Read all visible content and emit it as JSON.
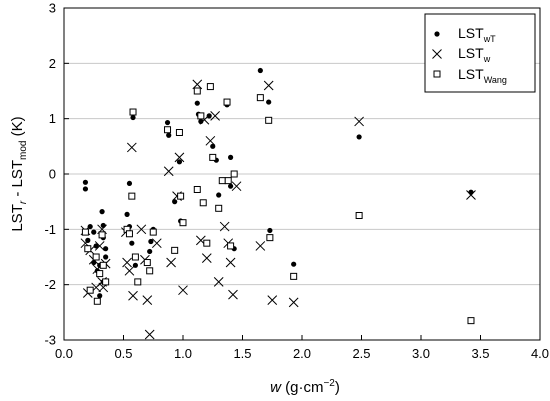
{
  "chart_data": {
    "type": "scatter",
    "xlabel": {
      "main": "w",
      "unit": "(g·cm",
      "exp": "−2",
      "close": ")"
    },
    "ylabel": {
      "a": "LST",
      "a_sub": "r",
      "b": " - LST",
      "b_sub": "mod",
      "c": " (K)"
    },
    "xlim": [
      0,
      4
    ],
    "ylim": [
      -3,
      3
    ],
    "xticks": [
      0.0,
      0.5,
      1.0,
      1.5,
      2.0,
      2.5,
      3.0,
      3.5,
      4.0
    ],
    "xtick_labels": [
      "0.0",
      "0.5",
      "1.0",
      "1.5",
      "2.0",
      "2.5",
      "3.0",
      "3.5",
      "4.0"
    ],
    "yticks": [
      -3,
      -2,
      -1,
      0,
      1,
      2,
      3
    ],
    "ytick_labels": [
      "-3",
      "-2",
      "-1",
      "0",
      "1",
      "2",
      "3"
    ],
    "grid": "horizontal",
    "legend_position": "top-right",
    "series": [
      {
        "name": "LST",
        "name_sub": "wT",
        "marker": "dot",
        "color": "#000000",
        "points": [
          [
            0.18,
            -0.15
          ],
          [
            0.18,
            -0.27
          ],
          [
            0.22,
            -0.95
          ],
          [
            0.2,
            -1.2
          ],
          [
            0.25,
            -1.05
          ],
          [
            0.27,
            -1.3
          ],
          [
            0.25,
            -1.6
          ],
          [
            0.28,
            -1.75
          ],
          [
            0.3,
            -1.65
          ],
          [
            0.32,
            -0.68
          ],
          [
            0.33,
            -0.93
          ],
          [
            0.33,
            -1.15
          ],
          [
            0.35,
            -1.35
          ],
          [
            0.35,
            -1.5
          ],
          [
            0.33,
            -1.95
          ],
          [
            0.3,
            -2.2
          ],
          [
            0.53,
            -0.73
          ],
          [
            0.55,
            -0.17
          ],
          [
            0.55,
            -0.95
          ],
          [
            0.57,
            -1.25
          ],
          [
            0.58,
            1.02
          ],
          [
            0.6,
            -1.65
          ],
          [
            0.72,
            -1.4
          ],
          [
            0.73,
            -1.22
          ],
          [
            0.75,
            -1.0
          ],
          [
            0.87,
            0.93
          ],
          [
            0.88,
            0.7
          ],
          [
            0.93,
            -0.5
          ],
          [
            0.97,
            0.22
          ],
          [
            0.98,
            -0.85
          ],
          [
            1.13,
            1.08
          ],
          [
            1.12,
            1.28
          ],
          [
            1.15,
            0.95
          ],
          [
            1.22,
            1.05
          ],
          [
            1.25,
            0.5
          ],
          [
            1.28,
            0.25
          ],
          [
            1.3,
            -0.38
          ],
          [
            1.37,
            1.25
          ],
          [
            1.4,
            0.3
          ],
          [
            1.4,
            -0.22
          ],
          [
            1.43,
            -1.35
          ],
          [
            1.65,
            1.87
          ],
          [
            1.72,
            1.3
          ],
          [
            1.73,
            -1.02
          ],
          [
            1.93,
            -1.63
          ],
          [
            2.48,
            0.67
          ],
          [
            3.42,
            -0.33
          ]
        ]
      },
      {
        "name": "LST",
        "name_sub": "w",
        "marker": "cross",
        "color": "#000000",
        "points": [
          [
            0.18,
            -1.02
          ],
          [
            0.18,
            -1.25
          ],
          [
            0.2,
            -2.15
          ],
          [
            0.22,
            -1.38
          ],
          [
            0.25,
            -1.55
          ],
          [
            0.27,
            -2.05
          ],
          [
            0.28,
            -1.72
          ],
          [
            0.3,
            -1.3
          ],
          [
            0.32,
            -1.0
          ],
          [
            0.32,
            -1.95
          ],
          [
            0.33,
            -2.05
          ],
          [
            0.35,
            -1.62
          ],
          [
            0.52,
            -1.05
          ],
          [
            0.53,
            -1.6
          ],
          [
            0.55,
            -1.75
          ],
          [
            0.57,
            0.48
          ],
          [
            0.58,
            -2.2
          ],
          [
            0.65,
            -1.0
          ],
          [
            0.68,
            -1.55
          ],
          [
            0.7,
            -2.28
          ],
          [
            0.72,
            -2.9
          ],
          [
            0.78,
            -1.25
          ],
          [
            0.88,
            0.05
          ],
          [
            0.9,
            -1.6
          ],
          [
            0.95,
            -0.4
          ],
          [
            0.97,
            0.3
          ],
          [
            1.0,
            -2.1
          ],
          [
            1.12,
            1.62
          ],
          [
            1.15,
            -1.2
          ],
          [
            1.18,
            0.98
          ],
          [
            1.2,
            -1.52
          ],
          [
            1.23,
            0.6
          ],
          [
            1.27,
            1.05
          ],
          [
            1.3,
            -1.95
          ],
          [
            1.35,
            -0.95
          ],
          [
            1.38,
            -1.25
          ],
          [
            1.4,
            -1.6
          ],
          [
            1.42,
            -2.18
          ],
          [
            1.45,
            -0.22
          ],
          [
            1.65,
            -1.3
          ],
          [
            1.72,
            1.6
          ],
          [
            1.75,
            -2.28
          ],
          [
            1.93,
            -2.32
          ],
          [
            2.48,
            0.95
          ],
          [
            3.42,
            -0.38
          ]
        ]
      },
      {
        "name": "LST",
        "name_sub": "Wang",
        "marker": "square",
        "color": "#000000",
        "points": [
          [
            0.18,
            -1.05
          ],
          [
            0.2,
            -1.35
          ],
          [
            0.22,
            -2.1
          ],
          [
            0.27,
            -1.5
          ],
          [
            0.28,
            -2.3
          ],
          [
            0.3,
            -1.8
          ],
          [
            0.32,
            -1.1
          ],
          [
            0.33,
            -1.65
          ],
          [
            0.35,
            -1.95
          ],
          [
            0.53,
            -1.0
          ],
          [
            0.55,
            -1.08
          ],
          [
            0.57,
            -0.4
          ],
          [
            0.58,
            1.12
          ],
          [
            0.6,
            -1.5
          ],
          [
            0.62,
            -1.95
          ],
          [
            0.7,
            -1.6
          ],
          [
            0.72,
            -1.75
          ],
          [
            0.75,
            -1.05
          ],
          [
            0.87,
            0.8
          ],
          [
            0.93,
            -1.38
          ],
          [
            0.97,
            0.75
          ],
          [
            0.98,
            -0.4
          ],
          [
            1.0,
            -0.88
          ],
          [
            1.12,
            -0.28
          ],
          [
            1.12,
            1.5
          ],
          [
            1.15,
            1.05
          ],
          [
            1.17,
            -0.52
          ],
          [
            1.2,
            -1.25
          ],
          [
            1.23,
            1.58
          ],
          [
            1.25,
            0.3
          ],
          [
            1.3,
            -0.62
          ],
          [
            1.33,
            -0.12
          ],
          [
            1.37,
            1.3
          ],
          [
            1.38,
            -0.12
          ],
          [
            1.4,
            -1.3
          ],
          [
            1.43,
            0.0
          ],
          [
            1.65,
            1.38
          ],
          [
            1.72,
            0.97
          ],
          [
            1.73,
            -1.15
          ],
          [
            1.93,
            -1.85
          ],
          [
            2.48,
            -0.75
          ],
          [
            3.42,
            -2.65
          ]
        ]
      }
    ]
  }
}
